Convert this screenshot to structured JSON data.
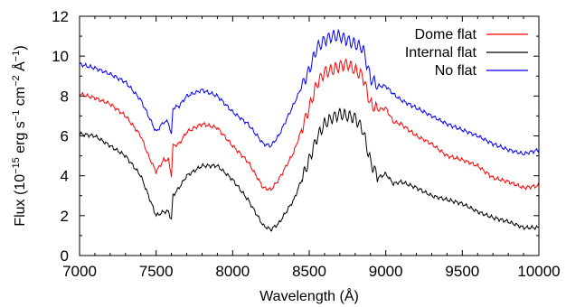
{
  "chart_data": {
    "type": "line",
    "xlabel": "Wavelength (Å)",
    "ylabel_parts": {
      "prefix": "Flux (10",
      "exp1": "−15",
      "mid1": " erg s",
      "exp2": "−1",
      "mid2": " cm",
      "exp3": "−2",
      "mid3": " Å",
      "exp4": "−1",
      "suffix": ")"
    },
    "xlim": [
      7000,
      10000
    ],
    "ylim": [
      0,
      12
    ],
    "xticks": [
      "7000",
      "7500",
      "8000",
      "8500",
      "9000",
      "9500",
      "10000"
    ],
    "yticks": [
      "0",
      "2",
      "4",
      "6",
      "8",
      "10",
      "12"
    ],
    "grid": false,
    "legend_position": "top-right",
    "series": [
      {
        "name": "Dome flat",
        "color": "#ff0000",
        "x": [
          7000,
          7100,
          7200,
          7300,
          7400,
          7450,
          7500,
          7550,
          7580,
          7600,
          7610,
          7650,
          7700,
          7800,
          7900,
          8000,
          8100,
          8200,
          8250,
          8300,
          8400,
          8500,
          8550,
          8600,
          8650,
          8700,
          8750,
          8800,
          8850,
          8900,
          8950,
          9000,
          9050,
          9100,
          9200,
          9300,
          9400,
          9500,
          9600,
          9700,
          9800,
          9900,
          10000
        ],
        "y": [
          8.1,
          7.9,
          7.6,
          7.0,
          6.0,
          5.0,
          4.2,
          4.8,
          4.8,
          4.0,
          5.5,
          5.6,
          6.2,
          6.6,
          6.4,
          5.5,
          4.7,
          3.4,
          3.3,
          3.8,
          5.2,
          7.4,
          8.6,
          9.2,
          9.3,
          9.5,
          9.6,
          9.3,
          9.0,
          7.6,
          7.3,
          7.4,
          6.7,
          6.6,
          6.0,
          5.6,
          5.0,
          4.8,
          4.5,
          3.9,
          3.7,
          3.4,
          3.5
        ]
      },
      {
        "name": "Internal flat",
        "color": "#000000",
        "x": [
          7000,
          7100,
          7200,
          7300,
          7400,
          7450,
          7500,
          7550,
          7580,
          7600,
          7610,
          7650,
          7700,
          7800,
          7900,
          8000,
          8100,
          8200,
          8250,
          8300,
          8400,
          8500,
          8550,
          8600,
          8650,
          8700,
          8750,
          8800,
          8850,
          8900,
          8950,
          9000,
          9050,
          9100,
          9200,
          9300,
          9400,
          9500,
          9600,
          9700,
          9800,
          9900,
          10000
        ],
        "y": [
          6.1,
          6.0,
          5.5,
          5.0,
          4.0,
          3.0,
          2.0,
          2.2,
          2.2,
          1.8,
          3.0,
          3.4,
          4.0,
          4.5,
          4.5,
          3.8,
          2.8,
          1.5,
          1.3,
          1.6,
          2.8,
          4.8,
          5.9,
          6.6,
          6.9,
          7.1,
          7.0,
          6.9,
          6.3,
          4.7,
          3.9,
          4.1,
          3.6,
          3.7,
          3.4,
          3.0,
          2.8,
          2.6,
          2.2,
          1.9,
          1.7,
          1.4,
          1.4
        ]
      },
      {
        "name": "No flat",
        "color": "#0000ff",
        "x": [
          7000,
          7100,
          7200,
          7300,
          7400,
          7450,
          7500,
          7550,
          7580,
          7600,
          7610,
          7650,
          7700,
          7800,
          7900,
          8000,
          8100,
          8200,
          8250,
          8300,
          8400,
          8500,
          8550,
          8600,
          8650,
          8700,
          8750,
          8800,
          8850,
          8900,
          8950,
          9000,
          9050,
          9100,
          9200,
          9300,
          9400,
          9500,
          9600,
          9700,
          9800,
          9900,
          10000
        ],
        "y": [
          9.6,
          9.4,
          9.1,
          8.7,
          7.8,
          7.0,
          6.2,
          6.7,
          6.7,
          6.0,
          7.4,
          7.5,
          8.0,
          8.3,
          8.0,
          7.2,
          6.6,
          5.6,
          5.5,
          6.0,
          7.6,
          9.3,
          10.4,
          10.8,
          11.0,
          11.0,
          10.8,
          10.6,
          10.4,
          8.9,
          8.5,
          8.5,
          8.1,
          7.8,
          7.4,
          7.0,
          6.6,
          6.3,
          6.0,
          5.6,
          5.3,
          5.1,
          5.3
        ]
      }
    ]
  }
}
